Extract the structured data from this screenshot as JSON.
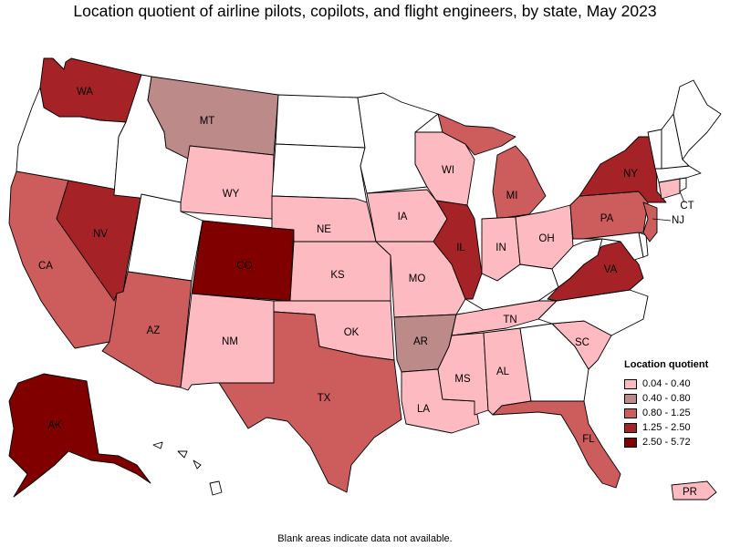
{
  "title": "Location quotient of airline pilots, copilots, and flight engineers, by state, May 2023",
  "footnote": "Blank areas indicate data not available.",
  "legend": {
    "title": "Location quotient",
    "items": [
      {
        "range": "0.04 - 0.40",
        "color": "#fdbbc1"
      },
      {
        "range": "0.40 - 0.80",
        "color": "#bc8a89"
      },
      {
        "range": "0.80 - 1.25",
        "color": "#cd5c5c"
      },
      {
        "range": "1.25 - 2.50",
        "color": "#a52226"
      },
      {
        "range": "2.50 - 5.72",
        "color": "#800000"
      }
    ]
  },
  "states": {
    "WA": {
      "label": "WA",
      "bin": 3
    },
    "OR": {
      "label": "",
      "bin": -1
    },
    "CA": {
      "label": "CA",
      "bin": 2
    },
    "NV": {
      "label": "NV",
      "bin": 3
    },
    "ID": {
      "label": "",
      "bin": -1
    },
    "MT": {
      "label": "MT",
      "bin": 1
    },
    "WY": {
      "label": "WY",
      "bin": 0
    },
    "UT": {
      "label": "",
      "bin": -1
    },
    "AZ": {
      "label": "AZ",
      "bin": 2
    },
    "CO": {
      "label": "CO",
      "bin": 4
    },
    "NM": {
      "label": "NM",
      "bin": 0
    },
    "ND": {
      "label": "",
      "bin": -1
    },
    "SD": {
      "label": "",
      "bin": -1
    },
    "NE": {
      "label": "NE",
      "bin": 0
    },
    "KS": {
      "label": "KS",
      "bin": 0
    },
    "OK": {
      "label": "OK",
      "bin": 0
    },
    "TX": {
      "label": "TX",
      "bin": 2
    },
    "MN": {
      "label": "",
      "bin": -1
    },
    "IA": {
      "label": "IA",
      "bin": 0
    },
    "MO": {
      "label": "MO",
      "bin": 0
    },
    "AR": {
      "label": "AR",
      "bin": 1
    },
    "LA": {
      "label": "LA",
      "bin": 0
    },
    "WI": {
      "label": "WI",
      "bin": 0
    },
    "IL": {
      "label": "IL",
      "bin": 3
    },
    "MI": {
      "label": "MI",
      "bin": 2
    },
    "IN": {
      "label": "IN",
      "bin": 0
    },
    "OH": {
      "label": "OH",
      "bin": 0
    },
    "KY": {
      "label": "",
      "bin": -1
    },
    "TN": {
      "label": "TN",
      "bin": 0
    },
    "MS": {
      "label": "MS",
      "bin": 0
    },
    "AL": {
      "label": "AL",
      "bin": 0
    },
    "GA": {
      "label": "",
      "bin": -1
    },
    "FL": {
      "label": "FL",
      "bin": 2
    },
    "SC": {
      "label": "SC",
      "bin": 0
    },
    "NC": {
      "label": "",
      "bin": -1
    },
    "VA": {
      "label": "VA",
      "bin": 3
    },
    "WV": {
      "label": "",
      "bin": -1
    },
    "MD": {
      "label": "",
      "bin": -1
    },
    "DE": {
      "label": "",
      "bin": -1
    },
    "PA": {
      "label": "PA",
      "bin": 2
    },
    "NJ": {
      "label": "NJ",
      "bin": 2
    },
    "NY": {
      "label": "NY",
      "bin": 3
    },
    "CT": {
      "label": "CT",
      "bin": 0
    },
    "RI": {
      "label": "",
      "bin": -1
    },
    "MA": {
      "label": "",
      "bin": -1
    },
    "VT": {
      "label": "",
      "bin": -1
    },
    "NH": {
      "label": "",
      "bin": -1
    },
    "ME": {
      "label": "",
      "bin": -1
    },
    "AK": {
      "label": "AK",
      "bin": 4
    },
    "HI": {
      "label": "",
      "bin": -1
    },
    "PR": {
      "label": "PR",
      "bin": 0
    }
  }
}
